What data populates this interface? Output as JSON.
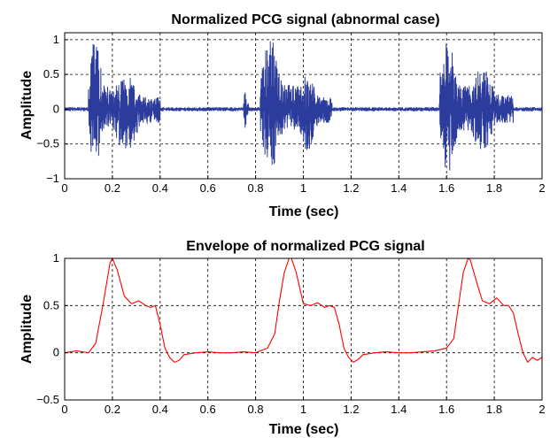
{
  "chart_data": [
    {
      "type": "line",
      "title": "Normalized PCG signal (abnormal case)",
      "xlabel": "Time (sec)",
      "ylabel": "Amplitude",
      "xlim": [
        0,
        2
      ],
      "ylim": [
        -1,
        1.1
      ],
      "xticks": [
        "0",
        "0.2",
        "0.4",
        "0.6",
        "0.8",
        "1",
        "1.2",
        "1.4",
        "1.6",
        "1.8",
        "2"
      ],
      "yticks": [
        "−1",
        "−0.5",
        "0",
        "0.5",
        "1"
      ],
      "grid": true,
      "series": [
        {
          "color": "#2c3c9c",
          "bursts": [
            {
              "start": 0.1,
              "end": 0.2,
              "peak": 1.0,
              "min": -0.8
            },
            {
              "start": 0.2,
              "end": 0.4,
              "peak": 0.5,
              "min": -0.6
            },
            {
              "start": 0.75,
              "end": 0.77,
              "peak": 0.25,
              "min": -0.35
            },
            {
              "start": 0.82,
              "end": 0.98,
              "peak": 1.0,
              "min": -0.85
            },
            {
              "start": 0.98,
              "end": 1.12,
              "peak": 0.5,
              "min": -0.6
            },
            {
              "start": 1.57,
              "end": 1.7,
              "peak": 1.0,
              "min": -0.9
            },
            {
              "start": 1.7,
              "end": 1.88,
              "peak": 0.6,
              "min": -0.6
            }
          ],
          "baseline_noise": 0.03
        }
      ]
    },
    {
      "type": "line",
      "title": "Envelope of normalized PCG signal",
      "xlabel": "Time (sec)",
      "ylabel": "Amplitude",
      "xlim": [
        0,
        2
      ],
      "ylim": [
        -0.5,
        1
      ],
      "xticks": [
        "0",
        "0.2",
        "0.4",
        "0.6",
        "0.8",
        "1",
        "1.2",
        "1.4",
        "1.6",
        "1.8",
        "2"
      ],
      "yticks": [
        "−0.5",
        "0",
        "0.5",
        "1"
      ],
      "grid": true,
      "series": [
        {
          "color": "#ff0000",
          "x": [
            0,
            0.05,
            0.1,
            0.13,
            0.16,
            0.19,
            0.2,
            0.22,
            0.25,
            0.28,
            0.31,
            0.34,
            0.36,
            0.38,
            0.4,
            0.42,
            0.44,
            0.46,
            0.48,
            0.5,
            0.55,
            0.6,
            0.65,
            0.7,
            0.75,
            0.8,
            0.85,
            0.88,
            0.9,
            0.92,
            0.94,
            0.95,
            0.97,
            1.0,
            1.03,
            1.06,
            1.09,
            1.11,
            1.13,
            1.15,
            1.17,
            1.19,
            1.21,
            1.23,
            1.25,
            1.3,
            1.35,
            1.4,
            1.45,
            1.5,
            1.55,
            1.6,
            1.63,
            1.65,
            1.67,
            1.69,
            1.7,
            1.72,
            1.75,
            1.78,
            1.81,
            1.84,
            1.86,
            1.88,
            1.9,
            1.92,
            1.94,
            1.96,
            1.98,
            2.0
          ],
          "y": [
            0.0,
            0.02,
            0.0,
            0.1,
            0.5,
            0.95,
            1.0,
            0.88,
            0.6,
            0.52,
            0.55,
            0.5,
            0.48,
            0.5,
            0.3,
            0.05,
            -0.05,
            -0.1,
            -0.08,
            -0.02,
            0.0,
            0.01,
            0.0,
            0.0,
            0.01,
            0.0,
            0.05,
            0.2,
            0.55,
            0.85,
            1.0,
            1.0,
            0.85,
            0.52,
            0.5,
            0.53,
            0.48,
            0.5,
            0.48,
            0.3,
            0.05,
            -0.05,
            -0.1,
            -0.07,
            -0.02,
            0.0,
            0.01,
            0.0,
            0.0,
            0.01,
            0.02,
            0.05,
            0.15,
            0.5,
            0.85,
            1.0,
            0.98,
            0.8,
            0.55,
            0.52,
            0.58,
            0.5,
            0.5,
            0.42,
            0.2,
            0.0,
            -0.1,
            -0.05,
            -0.08,
            -0.05
          ]
        }
      ]
    }
  ]
}
